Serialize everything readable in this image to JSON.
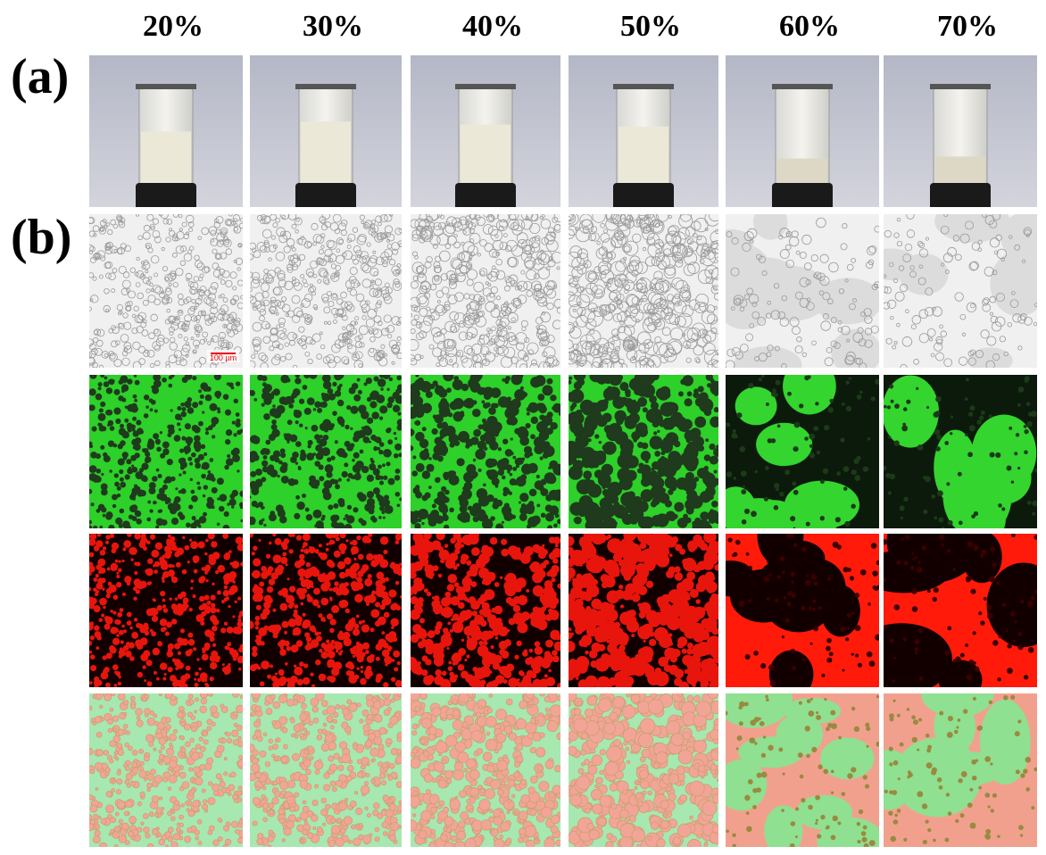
{
  "columns": [
    "20%",
    "30%",
    "40%",
    "50%",
    "60%",
    "70%"
  ],
  "panel_labels": [
    "(a)",
    "(b)"
  ],
  "scale_bar": "100 µm"
}
